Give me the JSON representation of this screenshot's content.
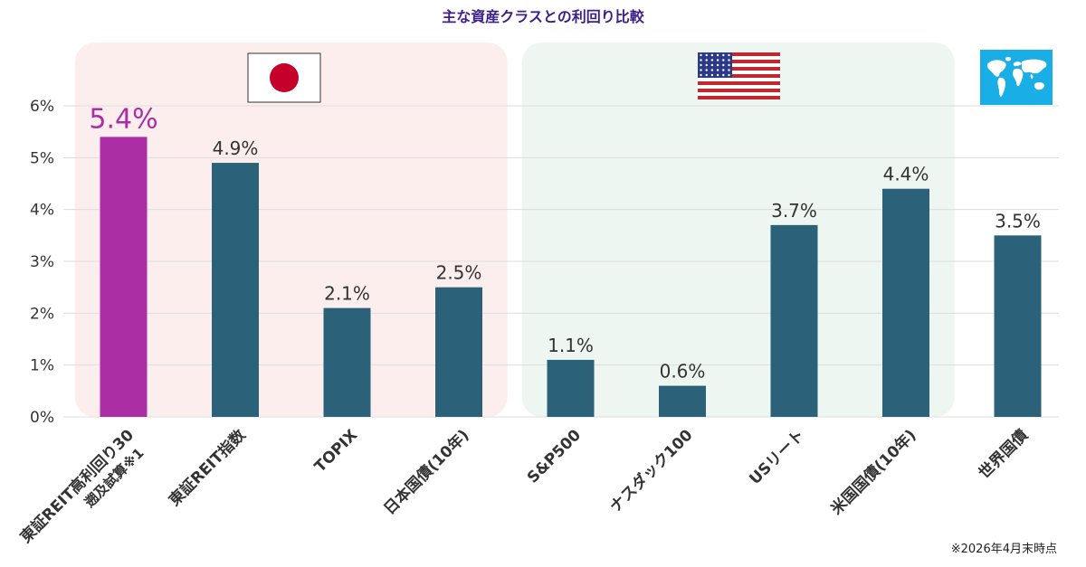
{
  "chart_data": {
    "type": "bar",
    "title": "主な資産クラスとの利回り比較",
    "footnote": "※2026年4月末時点",
    "categories": [
      "東証REIT高利回り30 遡及試算※1",
      "東証REIT指数",
      "TOPIX",
      "日本国債(10年)",
      "S&P500",
      "ナスダック100",
      "USリート",
      "米国国債(10年)",
      "世界国債"
    ],
    "category_lines": [
      [
        "東証REIT高利回り30",
        "遡及試算※1"
      ],
      [
        "東証REIT指数"
      ],
      [
        "TOPIX"
      ],
      [
        "日本国債(10年)"
      ],
      [
        "S&P500"
      ],
      [
        "ナスダック100"
      ],
      [
        "USリート"
      ],
      [
        "米国国債(10年)"
      ],
      [
        "世界国債"
      ]
    ],
    "values": [
      5.4,
      4.9,
      2.1,
      2.5,
      1.1,
      0.6,
      3.7,
      4.4,
      3.5
    ],
    "value_labels": [
      "5.4%",
      "4.9%",
      "2.1%",
      "2.5%",
      "1.1%",
      "0.6%",
      "3.7%",
      "4.4%",
      "3.5%"
    ],
    "highlight_index": 0,
    "ylim": [
      0,
      6
    ],
    "y_ticks": [
      0,
      1,
      2,
      3,
      4,
      5,
      6
    ],
    "y_tick_labels": [
      "0%",
      "1%",
      "2%",
      "3%",
      "4%",
      "5%",
      "6%"
    ],
    "grid": true,
    "groups": [
      {
        "region": "japan",
        "flag": "japan-flag-icon",
        "category_range": [
          0,
          3
        ],
        "background": "#fdeeee"
      },
      {
        "region": "usa",
        "flag": "usa-flag-icon",
        "category_range": [
          4,
          7
        ],
        "background": "#edf6f0"
      },
      {
        "region": "world",
        "flag": "world-map-icon",
        "category_range": [
          8,
          8
        ],
        "background": "none"
      }
    ],
    "colors": {
      "bar": "#2b6279",
      "highlight_bar": "#ab2ea5",
      "title": "#3d1f8c",
      "grid": "#dddddd",
      "text": "#333333"
    }
  }
}
